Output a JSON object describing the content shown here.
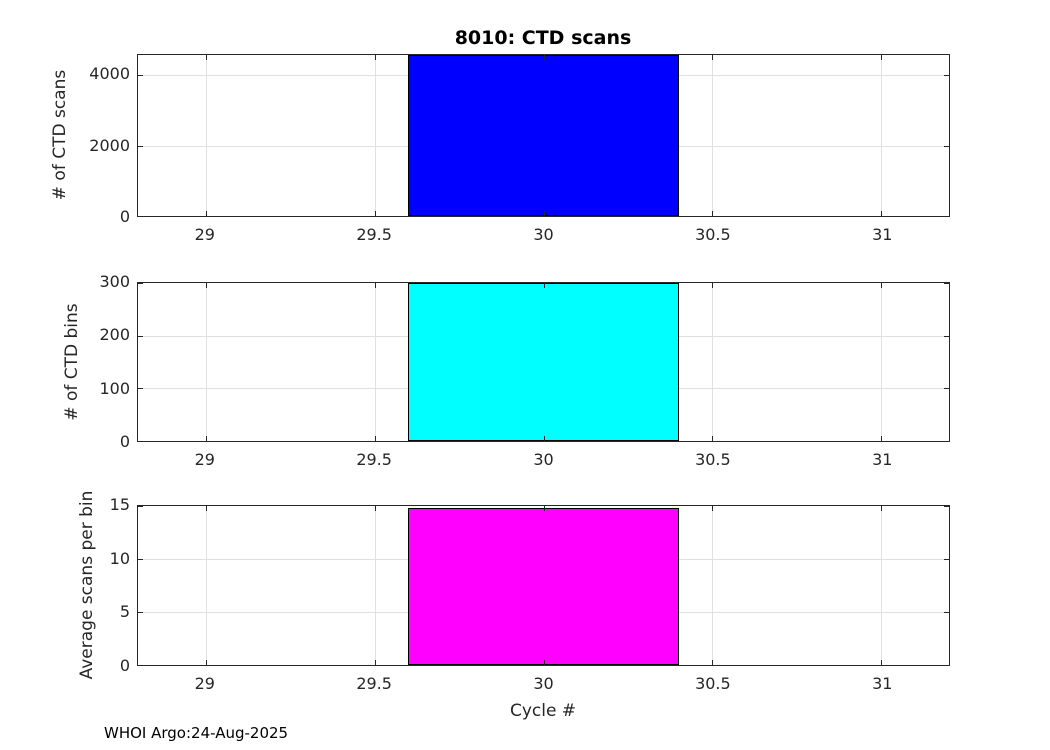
{
  "figure": {
    "title": "8010: CTD scans",
    "footer": "WHOI Argo:24-Aug-2025",
    "colors": {
      "background": "#ffffff",
      "axis": "#262626",
      "grid": "#e0e0e0",
      "bar_edge": "#000000"
    }
  },
  "chart_data": [
    {
      "type": "bar",
      "title": "8010: CTD scans",
      "ylabel": "# of CTD scans",
      "x": [
        30
      ],
      "values": [
        4570
      ],
      "bar_width": 0.8,
      "bar_color": "#0000ff",
      "xlim": [
        28.8,
        31.2
      ],
      "ylim": [
        0,
        4570
      ],
      "xticks": [
        29,
        29.5,
        30,
        30.5,
        31
      ],
      "yticks": [
        0,
        2000,
        4000
      ],
      "grid": true,
      "legend": null
    },
    {
      "type": "bar",
      "title": "",
      "ylabel": "# of CTD bins",
      "x": [
        30
      ],
      "values": [
        300
      ],
      "bar_width": 0.8,
      "bar_color": "#00ffff",
      "xlim": [
        28.8,
        31.2
      ],
      "ylim": [
        0,
        300
      ],
      "xticks": [
        29,
        29.5,
        30,
        30.5,
        31
      ],
      "yticks": [
        0,
        100,
        200,
        300
      ],
      "grid": true,
      "legend": null
    },
    {
      "type": "bar",
      "title": "",
      "xlabel": "Cycle #",
      "ylabel": "Average scans per bin",
      "x": [
        30
      ],
      "values": [
        14.85
      ],
      "bar_width": 0.8,
      "bar_color": "#ff00ff",
      "xlim": [
        28.8,
        31.2
      ],
      "ylim": [
        0,
        15
      ],
      "xticks": [
        29,
        29.5,
        30,
        30.5,
        31
      ],
      "yticks": [
        0,
        5,
        10,
        15
      ],
      "grid": true,
      "legend": null
    }
  ]
}
